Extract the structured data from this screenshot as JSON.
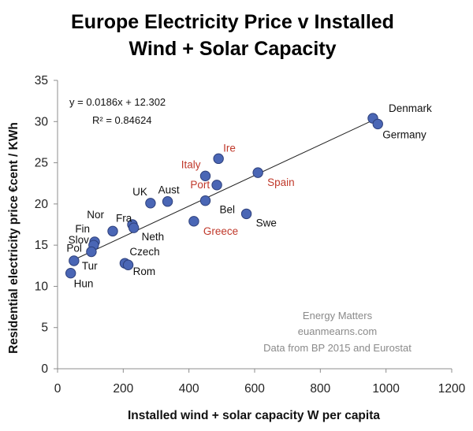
{
  "chart_data": {
    "type": "scatter",
    "title_lines": [
      "Europe Electricity Price v Installed",
      "Wind + Solar Capacity"
    ],
    "xlabel": "Installed wind + solar capacity W per capita",
    "ylabel": "Residential electricity price €cent / KWh",
    "xlim": [
      0,
      1200
    ],
    "ylim": [
      0,
      35
    ],
    "x_ticks": [
      0,
      200,
      400,
      600,
      800,
      1000,
      1200
    ],
    "y_ticks": [
      0,
      5,
      10,
      15,
      20,
      25,
      30,
      35
    ],
    "grid": false,
    "trendline": {
      "slope": 0.0186,
      "intercept": 12.302,
      "x_range": [
        50,
        965
      ]
    },
    "equation_text": "y = 0.0186x + 12.302",
    "r2_text": "R² = 0.84624",
    "label_colors": {
      "default": "#111111",
      "highlight": "#c0392b"
    },
    "marker_color": "#4a66b5",
    "points": [
      {
        "label": "Denmark",
        "x": 960,
        "y": 30.4,
        "highlight": false
      },
      {
        "label": "Germany",
        "x": 975,
        "y": 29.7,
        "highlight": false
      },
      {
        "label": "Ire",
        "x": 490,
        "y": 25.5,
        "highlight": true
      },
      {
        "label": "Italy",
        "x": 450,
        "y": 23.4,
        "highlight": true
      },
      {
        "label": "Spain",
        "x": 610,
        "y": 23.8,
        "highlight": true
      },
      {
        "label": "Port",
        "x": 485,
        "y": 22.3,
        "highlight": true
      },
      {
        "label": "Aust",
        "x": 335,
        "y": 20.3,
        "highlight": false
      },
      {
        "label": "UK",
        "x": 283,
        "y": 20.1,
        "highlight": false
      },
      {
        "label": "Bel",
        "x": 450,
        "y": 20.4,
        "highlight": false
      },
      {
        "label": "Swe",
        "x": 575,
        "y": 18.8,
        "highlight": false
      },
      {
        "label": "Greece",
        "x": 415,
        "y": 17.9,
        "highlight": true
      },
      {
        "label": "Fra",
        "x": 168,
        "y": 16.7,
        "highlight": false
      },
      {
        "label": "Nor",
        "x": 228,
        "y": 17.5,
        "highlight": false
      },
      {
        "label": "Neth",
        "x": 232,
        "y": 17.1,
        "highlight": false
      },
      {
        "label": "Fin",
        "x": 113,
        "y": 15.4,
        "highlight": false
      },
      {
        "label": "Slov",
        "x": 110,
        "y": 15.0,
        "highlight": false
      },
      {
        "label": "Pol",
        "x": 103,
        "y": 14.2,
        "highlight": false
      },
      {
        "label": "Tur",
        "x": 50,
        "y": 13.1,
        "highlight": false
      },
      {
        "label": "Hun",
        "x": 40,
        "y": 11.6,
        "highlight": false
      },
      {
        "label": "Czech",
        "x": 205,
        "y": 12.8,
        "highlight": false
      },
      {
        "label": "Rom",
        "x": 215,
        "y": 12.6,
        "highlight": false
      }
    ],
    "credit_lines": [
      "Energy Matters",
      "euanmearns.com",
      "Data from BP 2015 and Eurostat"
    ]
  }
}
